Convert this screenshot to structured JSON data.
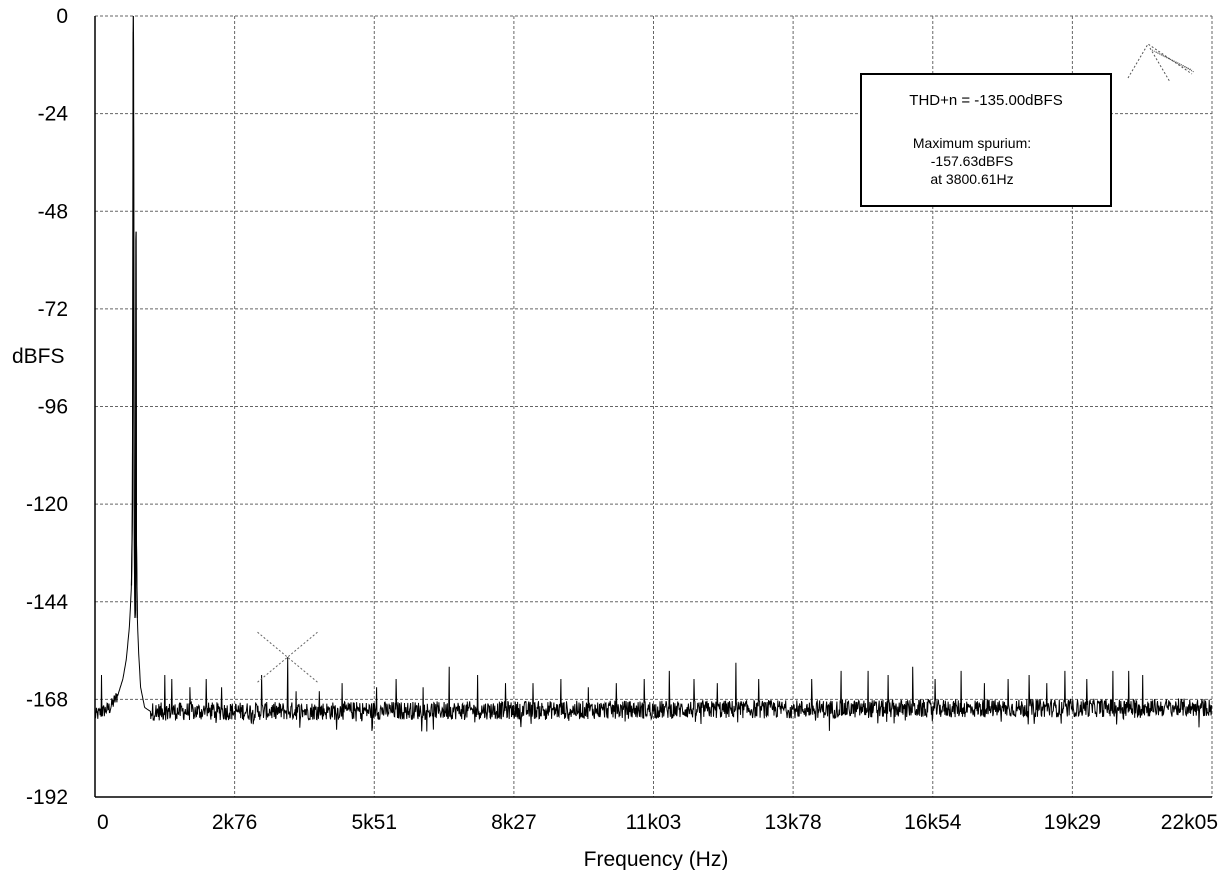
{
  "chart_data": {
    "type": "line",
    "title": "",
    "xlabel": "Frequency (Hz)",
    "ylabel": "dBFS",
    "xlim": [
      0,
      22050
    ],
    "ylim": [
      -192,
      0
    ],
    "grid": true,
    "legend": "none",
    "y_ticks": [
      {
        "value": 0,
        "label": "0"
      },
      {
        "value": -24,
        "label": "-24"
      },
      {
        "value": -48,
        "label": "-48"
      },
      {
        "value": -72,
        "label": "-72"
      },
      {
        "value": -96,
        "label": "-96"
      },
      {
        "value": -120,
        "label": "-120"
      },
      {
        "value": -144,
        "label": "-144"
      },
      {
        "value": -168,
        "label": "-168"
      },
      {
        "value": -192,
        "label": "-192"
      }
    ],
    "x_ticks": [
      {
        "value": 0,
        "label": "0"
      },
      {
        "value": 2756,
        "label": "2k76"
      },
      {
        "value": 5513,
        "label": "5k51"
      },
      {
        "value": 8269,
        "label": "8k27"
      },
      {
        "value": 11025,
        "label": "11k03"
      },
      {
        "value": 13781,
        "label": "13k78"
      },
      {
        "value": 16538,
        "label": "16k54"
      },
      {
        "value": 19294,
        "label": "19k29"
      },
      {
        "value": 22050,
        "label": "22k05"
      }
    ],
    "series": [
      {
        "color": "#000000",
        "noise_floor_db": -170,
        "points": [
          {
            "x": 0,
            "y": -172
          },
          {
            "x": 150,
            "y": -171
          },
          {
            "x": 300,
            "y": -170
          },
          {
            "x": 450,
            "y": -167
          },
          {
            "x": 550,
            "y": -163
          },
          {
            "x": 620,
            "y": -158
          },
          {
            "x": 680,
            "y": -150
          },
          {
            "x": 720,
            "y": -140
          },
          {
            "x": 740,
            "y": -120
          },
          {
            "x": 748,
            "y": -60
          },
          {
            "x": 752,
            "y": -6
          },
          {
            "x": 756,
            "y": 0
          },
          {
            "x": 760,
            "y": -8
          },
          {
            "x": 766,
            "y": -60
          },
          {
            "x": 775,
            "y": -130
          },
          {
            "x": 790,
            "y": -148
          },
          {
            "x": 800,
            "y": -146
          },
          {
            "x": 808,
            "y": -55
          },
          {
            "x": 812,
            "y": -53
          },
          {
            "x": 818,
            "y": -130
          },
          {
            "x": 835,
            "y": -148
          },
          {
            "x": 860,
            "y": -156
          },
          {
            "x": 900,
            "y": -165
          },
          {
            "x": 980,
            "y": -170
          },
          {
            "x": 1100,
            "y": -171
          },
          {
            "x": 22050,
            "y": -170
          }
        ],
        "spurs": [
          {
            "x": 130,
            "y": -162
          },
          {
            "x": 1380,
            "y": -162
          },
          {
            "x": 1520,
            "y": -163
          },
          {
            "x": 1870,
            "y": -165
          },
          {
            "x": 2200,
            "y": -163
          },
          {
            "x": 2500,
            "y": -165
          },
          {
            "x": 3290,
            "y": -162
          },
          {
            "x": 3801,
            "y": -157.6
          },
          {
            "x": 3970,
            "y": -166
          },
          {
            "x": 4430,
            "y": -166
          },
          {
            "x": 4880,
            "y": -164
          },
          {
            "x": 5560,
            "y": -165
          },
          {
            "x": 5940,
            "y": -163
          },
          {
            "x": 6480,
            "y": -165
          },
          {
            "x": 6990,
            "y": -160
          },
          {
            "x": 7550,
            "y": -162
          },
          {
            "x": 8100,
            "y": -164
          },
          {
            "x": 8650,
            "y": -164
          },
          {
            "x": 9200,
            "y": -163
          },
          {
            "x": 9740,
            "y": -165
          },
          {
            "x": 10290,
            "y": -164
          },
          {
            "x": 10840,
            "y": -163
          },
          {
            "x": 11340,
            "y": -161
          },
          {
            "x": 11820,
            "y": -163
          },
          {
            "x": 12280,
            "y": -164
          },
          {
            "x": 12650,
            "y": -159
          },
          {
            "x": 13100,
            "y": -163
          },
          {
            "x": 14150,
            "y": -163
          },
          {
            "x": 14730,
            "y": -161
          },
          {
            "x": 15260,
            "y": -161
          },
          {
            "x": 15660,
            "y": -162
          },
          {
            "x": 16140,
            "y": -160
          },
          {
            "x": 16580,
            "y": -163
          },
          {
            "x": 17100,
            "y": -161
          },
          {
            "x": 17560,
            "y": -164
          },
          {
            "x": 18030,
            "y": -163
          },
          {
            "x": 18440,
            "y": -162
          },
          {
            "x": 18790,
            "y": -164
          },
          {
            "x": 19150,
            "y": -161
          },
          {
            "x": 19580,
            "y": -163
          },
          {
            "x": 20090,
            "y": -161
          },
          {
            "x": 20410,
            "y": -161
          },
          {
            "x": 20680,
            "y": -162
          }
        ]
      }
    ],
    "annotations": {
      "thd_text": "THD+n = -135.00dBFS",
      "spur_title": "Maximum spurium:",
      "spur_value": "-157.63dBFS",
      "spur_freq": "at 3800.61Hz",
      "marker": {
        "x": 3800.61,
        "y": -157.63
      }
    }
  }
}
